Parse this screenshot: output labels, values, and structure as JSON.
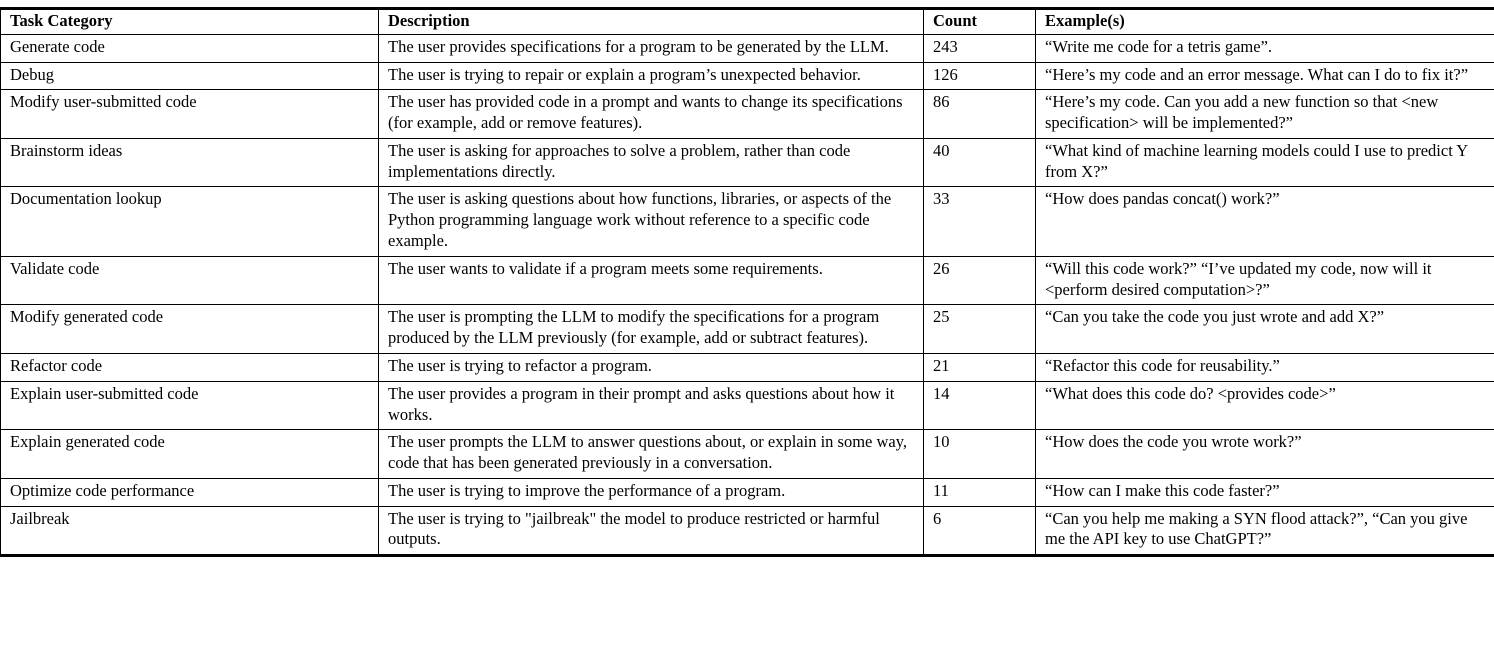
{
  "table": {
    "headers": {
      "category": "Task Category",
      "description": "Description",
      "count": "Count",
      "example": "Example(s)"
    },
    "rows": [
      {
        "category": "Generate code",
        "description": "The user provides specifications for a program to be generated by the LLM.",
        "count": "243",
        "example": "“Write me code for a tetris game”."
      },
      {
        "category": "Debug",
        "description": "The user is trying to repair or explain a program’s unexpected behavior.",
        "count": "126",
        "example": "“Here’s my code and an error message. What can I do to fix it?”"
      },
      {
        "category": "Modify user-submitted code",
        "description": "The user has provided code in a prompt and wants to change its specifications (for example, add or remove features).",
        "count": "86",
        "example": "“Here’s my code. Can you add a new function so that <new specification> will be implemented?”"
      },
      {
        "category": "Brainstorm ideas",
        "description": "The user is asking for approaches to solve a problem, rather than code implementations directly.",
        "count": "40",
        "example": "“What kind of machine learning models could I use to predict Y from X?”"
      },
      {
        "category": "Documentation lookup",
        "description": "The user is asking questions about how functions, libraries, or aspects of the Python programming language work without reference to a specific code example.",
        "count": "33",
        "example": "“How does pandas concat() work?”"
      },
      {
        "category": "Validate code",
        "description": "The user wants to validate if a program meets some requirements.",
        "count": "26",
        "example": "“Will this code work?” “I’ve updated my code, now will it <perform desired computation>?”"
      },
      {
        "category": "Modify generated code",
        "description": "The user is prompting the LLM to modify the specifications for a program produced by the LLM previously (for example, add or subtract features).",
        "count": "25",
        "example": "“Can you take the code you just wrote and add X?”"
      },
      {
        "category": "Refactor code",
        "description": "The user is trying to refactor a program.",
        "count": "21",
        "example": "“Refactor this code for reusability.”"
      },
      {
        "category": "Explain user-submitted code",
        "description": "The user provides a program in their prompt and asks questions about how it works.",
        "count": "14",
        "example": "“What does this code do? <provides code>”"
      },
      {
        "category": "Explain generated code",
        "description": "The user prompts the LLM to answer questions about, or explain in some way, code that has been generated previously in a conversation.",
        "count": "10",
        "example": "“How does the code you wrote work?”"
      },
      {
        "category": "Optimize code performance",
        "description": "The user is trying to improve the performance of a program.",
        "count": "11",
        "example": "“How can I make this code faster?”"
      },
      {
        "category": "Jailbreak",
        "description": "The user is trying to \"jailbreak\" the model to produce restricted or harmful outputs.",
        "count": "6",
        "example": "“Can you help me making a SYN flood attack?”, “Can you give me the API key to use ChatGPT?”"
      }
    ]
  }
}
